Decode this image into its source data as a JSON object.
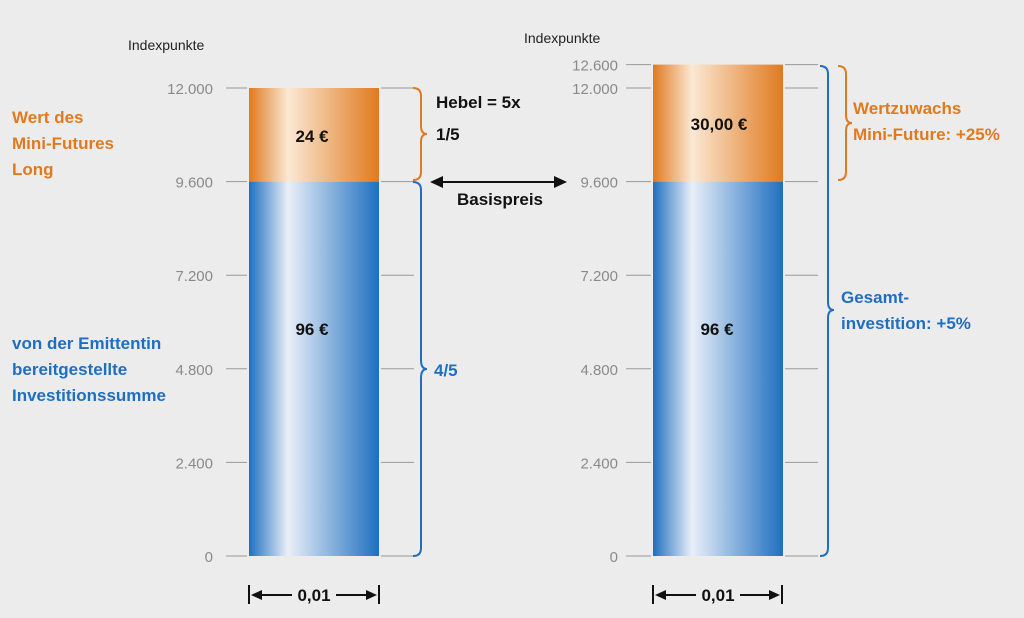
{
  "colors": {
    "background": "#ececec",
    "orange": "#e07a1f",
    "blue": "#1f6fc0",
    "grid": "#999999"
  },
  "chart_data": [
    {
      "type": "bar",
      "stacked": true,
      "ylabel": "Indexpunkte",
      "yticks": [
        "0",
        "2.400",
        "4.800",
        "7.200",
        "9.600",
        "12.000"
      ],
      "ylim": [
        0,
        12000
      ],
      "segments": [
        {
          "name": "von der Emittentin bereitgestellte Investitionssumme",
          "from": 0,
          "to": 9600,
          "label": "96 €",
          "color": "#1f6fc0"
        },
        {
          "name": "Wert des Mini-Futures Long",
          "from": 9600,
          "to": 12000,
          "label": "24 €",
          "color": "#e07a1f"
        }
      ],
      "width_label": "0,01"
    },
    {
      "type": "bar",
      "stacked": true,
      "ylabel": "Indexpunkte",
      "yticks": [
        "0",
        "2.400",
        "4.800",
        "7.200",
        "9.600",
        "12.000",
        "12.600"
      ],
      "ylim": [
        0,
        12600
      ],
      "segments": [
        {
          "name": "investment",
          "from": 0,
          "to": 9600,
          "label": "96 €",
          "color": "#1f6fc0"
        },
        {
          "name": "Wertzuwachs",
          "from": 9600,
          "to": 12600,
          "label": "30,00 €",
          "color": "#e07a1f"
        }
      ],
      "width_label": "0,01"
    }
  ],
  "left": {
    "axis_title": "Indexpunkte",
    "orange_label": [
      "Wert des",
      "Mini-Futures",
      "Long"
    ],
    "blue_label": [
      "von der Emittentin",
      "bereitgestellte",
      "Investitionssumme"
    ],
    "hebel": "Hebel = 5x",
    "fraction_top": "1/5",
    "fraction_bottom": "4/5",
    "top_value": "24 €",
    "bottom_value": "96 €",
    "width": "0,01"
  },
  "middle": {
    "basispreis": "Basispreis"
  },
  "right": {
    "axis_title": "Indexpunkte",
    "orange_label": [
      "Wertzuwachs",
      "Mini-Future: +25%"
    ],
    "blue_label": [
      "Gesamt-",
      "investition: +5%"
    ],
    "top_value": "30,00 €",
    "bottom_value": "96 €",
    "width": "0,01"
  }
}
